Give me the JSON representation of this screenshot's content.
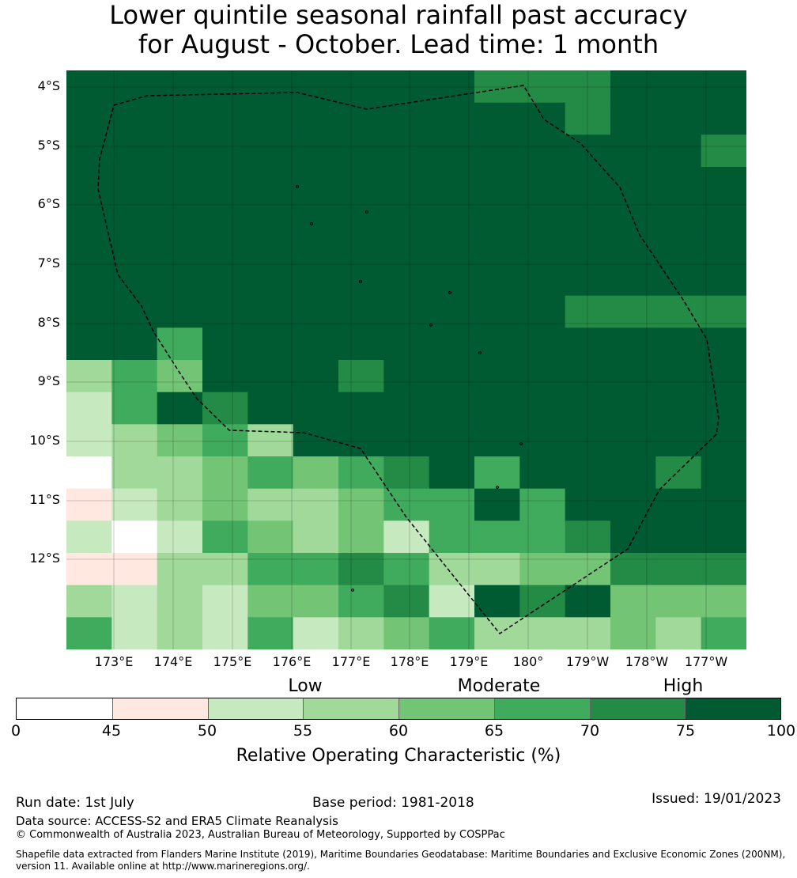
{
  "title_line1": "Lower quintile seasonal rainfall past accuracy",
  "title_line2": "for August - October. Lead time: 1 month",
  "map": {
    "lat_labels": [
      "4°S",
      "5°S",
      "6°S",
      "7°S",
      "8°S",
      "9°S",
      "10°S",
      "11°S",
      "12°S"
    ],
    "lon_labels": [
      "173°E",
      "174°E",
      "175°E",
      "176°E",
      "177°E",
      "178°E",
      "179°E",
      "180°",
      "179°W",
      "178°W",
      "177°W"
    ],
    "grid_colors_legend": "values are ROC %, binned by colorbar",
    "cells_roc_bins": [
      [
        80,
        80,
        80,
        80,
        80,
        80,
        80,
        80,
        80,
        72,
        72,
        72,
        80,
        80,
        80
      ],
      [
        80,
        80,
        80,
        80,
        80,
        80,
        80,
        80,
        80,
        80,
        80,
        72,
        80,
        80,
        80
      ],
      [
        80,
        80,
        80,
        80,
        80,
        80,
        80,
        80,
        80,
        80,
        80,
        80,
        80,
        80,
        72
      ],
      [
        80,
        80,
        80,
        80,
        80,
        80,
        80,
        80,
        80,
        80,
        80,
        80,
        80,
        80,
        80
      ],
      [
        80,
        80,
        80,
        80,
        80,
        80,
        80,
        80,
        80,
        80,
        80,
        80,
        80,
        80,
        80
      ],
      [
        80,
        80,
        80,
        80,
        80,
        80,
        80,
        80,
        80,
        80,
        80,
        80,
        80,
        80,
        80
      ],
      [
        80,
        80,
        80,
        80,
        80,
        80,
        80,
        80,
        80,
        80,
        80,
        80,
        80,
        80,
        80
      ],
      [
        80,
        80,
        80,
        80,
        80,
        80,
        80,
        80,
        80,
        80,
        80,
        72,
        72,
        72,
        72
      ],
      [
        80,
        80,
        67,
        80,
        80,
        80,
        80,
        80,
        80,
        80,
        80,
        80,
        80,
        80,
        80
      ],
      [
        57,
        67,
        62,
        80,
        80,
        80,
        72,
        80,
        80,
        80,
        80,
        80,
        80,
        80,
        80
      ],
      [
        52,
        67,
        80,
        72,
        80,
        80,
        80,
        80,
        80,
        80,
        80,
        80,
        80,
        80,
        80
      ],
      [
        52,
        57,
        62,
        67,
        57,
        80,
        80,
        80,
        80,
        80,
        80,
        80,
        80,
        80,
        80
      ],
      [
        40,
        57,
        57,
        62,
        67,
        62,
        67,
        72,
        80,
        67,
        80,
        80,
        80,
        72,
        80
      ],
      [
        47,
        52,
        57,
        62,
        57,
        57,
        62,
        67,
        67,
        80,
        67,
        80,
        80,
        80,
        80
      ],
      [
        52,
        40,
        52,
        67,
        62,
        57,
        62,
        52,
        67,
        67,
        67,
        72,
        80,
        80,
        80
      ],
      [
        47,
        47,
        57,
        57,
        67,
        67,
        72,
        67,
        57,
        57,
        62,
        62,
        72,
        72,
        72
      ],
      [
        57,
        52,
        57,
        52,
        62,
        62,
        67,
        72,
        52,
        80,
        72,
        80,
        62,
        62,
        62
      ],
      [
        67,
        52,
        57,
        52,
        67,
        52,
        57,
        62,
        67,
        57,
        57,
        57,
        62,
        57,
        67
      ]
    ]
  },
  "colorbar": {
    "category_labels": [
      "Low",
      "Moderate",
      "High"
    ],
    "ticks": [
      "0",
      "45",
      "50",
      "55",
      "60",
      "65",
      "70",
      "75",
      "100"
    ],
    "bins": [
      {
        "from": 0,
        "to": 45,
        "color": "#ffffff"
      },
      {
        "from": 45,
        "to": 50,
        "color": "#fee8e0"
      },
      {
        "from": 50,
        "to": 55,
        "color": "#c7e9c0"
      },
      {
        "from": 55,
        "to": 60,
        "color": "#a1d99b"
      },
      {
        "from": 60,
        "to": 65,
        "color": "#74c476"
      },
      {
        "from": 65,
        "to": 70,
        "color": "#41ab5d"
      },
      {
        "from": 70,
        "to": 75,
        "color": "#238b45"
      },
      {
        "from": 75,
        "to": 100,
        "color": "#005a32"
      }
    ],
    "title": "Relative Operating Characteristic (%)"
  },
  "footer": {
    "run_date": "Run date: 1st July",
    "base_period": "Base period: 1981-2018",
    "issued": "Issued: 19/01/2023",
    "data_source": "Data source: ACCESS-S2 and ERA5 Climate Reanalysis",
    "copyright": "© Commonwealth of Australia 2023, Australian Bureau of Meteorology, Supported by COSPPac",
    "shapefile": "Shapefile data extracted from Flanders Marine Institute (2019), Maritime Boundaries Geodatabase: Maritime Boundaries and Exclusive Economic Zones (200NM), version 11. Available online at http://www.marineregions.org/."
  }
}
